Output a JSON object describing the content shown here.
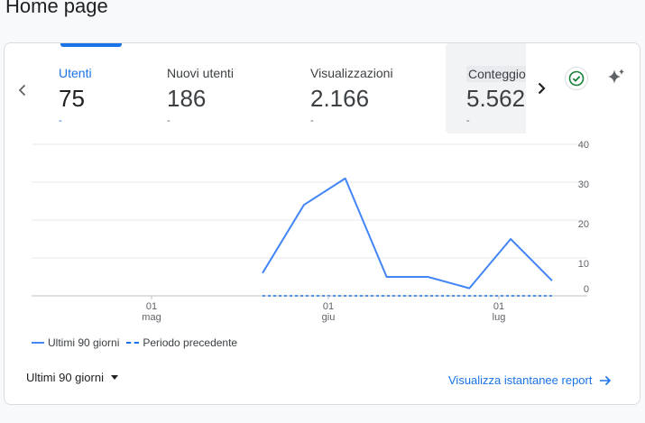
{
  "page": {
    "title": "Home page"
  },
  "tabs": [
    {
      "label": "Utenti",
      "value": "75",
      "delta": "-"
    },
    {
      "label": "Nuovi utenti",
      "value": "186",
      "delta": "-"
    },
    {
      "label": "Visualizzazioni",
      "value": "2.166",
      "delta": "-"
    },
    {
      "label": "Conteggio",
      "value": "5.562",
      "delta": "-"
    }
  ],
  "icons": {
    "prev": "chevron-left-icon",
    "next": "chevron-right-icon",
    "check": "check-circle-icon",
    "sparkle": "sparkle-icon"
  },
  "colors": {
    "accent": "#1a73e8",
    "series": "#4285f4",
    "check": "#188038"
  },
  "chart_data": {
    "type": "line",
    "x": [
      0,
      1,
      2,
      3,
      4,
      5,
      6,
      7
    ],
    "x_tick_labels": [
      {
        "day": "01",
        "month": "mag"
      },
      {
        "day": "01",
        "month": "giu"
      },
      {
        "day": "01",
        "month": "lug"
      }
    ],
    "series": [
      {
        "name": "Ultimi 90 giorni",
        "values": [
          6,
          24,
          31,
          5,
          5,
          2,
          15,
          4
        ],
        "style": "solid"
      },
      {
        "name": "Periodo precedente",
        "values": [
          0,
          0,
          0,
          0,
          0,
          0,
          0,
          0
        ],
        "style": "dashed"
      }
    ],
    "y_ticks": [
      "40",
      "30",
      "20",
      "10",
      "0"
    ],
    "ylim": [
      0,
      40
    ],
    "grid": true
  },
  "footer": {
    "period_label": "Ultimi 90 giorni",
    "report_link": "Visualizza istantanee report"
  }
}
